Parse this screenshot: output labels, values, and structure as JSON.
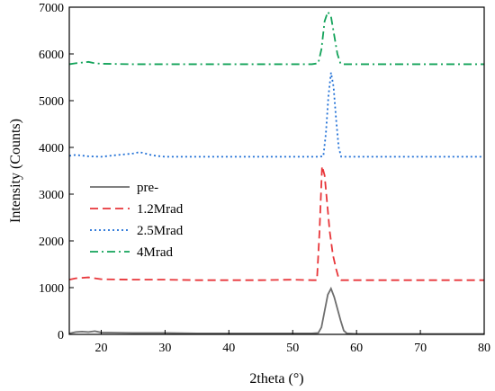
{
  "chart_data": {
    "type": "line",
    "xlabel": "2theta (°)",
    "ylabel": "Intensity (Counts)",
    "xlim": [
      15,
      80
    ],
    "ylim": [
      0,
      7000
    ],
    "xticks": [
      20,
      30,
      40,
      50,
      60,
      70,
      80
    ],
    "yticks": [
      0,
      1000,
      2000,
      3000,
      4000,
      5000,
      6000,
      7000
    ],
    "grid": false,
    "legend_position": "middle-left",
    "series": [
      {
        "name": "pre-",
        "color": "#6e6e6e",
        "dash": "solid",
        "x": [
          15,
          16,
          17,
          18,
          19,
          20,
          25,
          30,
          35,
          40,
          45,
          50,
          53,
          54,
          54.5,
          55,
          55.5,
          56,
          56.5,
          57,
          57.5,
          58,
          58.5,
          60,
          65,
          70,
          75,
          80
        ],
        "y": [
          20,
          50,
          60,
          50,
          70,
          40,
          30,
          30,
          20,
          20,
          20,
          20,
          20,
          30,
          150,
          500,
          850,
          980,
          800,
          550,
          300,
          80,
          20,
          10,
          10,
          10,
          10,
          10
        ]
      },
      {
        "name": "1.2Mrad",
        "color": "#e8363a",
        "dash": "dashed",
        "x": [
          15,
          16,
          18,
          20,
          25,
          30,
          35,
          40,
          45,
          50,
          53,
          53.8,
          54.2,
          54.6,
          55,
          55.4,
          55.8,
          56.3,
          56.8,
          57.2,
          57.6,
          58,
          60,
          65,
          70,
          75,
          80
        ],
        "y": [
          1170,
          1200,
          1220,
          1180,
          1170,
          1170,
          1160,
          1160,
          1160,
          1170,
          1160,
          1160,
          2200,
          3600,
          3400,
          2800,
          2200,
          1700,
          1400,
          1200,
          1160,
          1160,
          1160,
          1160,
          1160,
          1160,
          1160
        ]
      },
      {
        "name": "2.5Mrad",
        "color": "#1f6fd6",
        "dash": "dotted",
        "x": [
          15,
          16,
          18,
          20,
          22,
          25,
          26,
          28,
          30,
          35,
          40,
          45,
          50,
          54,
          54.8,
          55.2,
          55.6,
          56,
          56.4,
          56.8,
          57.2,
          57.6,
          58,
          60,
          65,
          70,
          75,
          80
        ],
        "y": [
          3820,
          3840,
          3810,
          3800,
          3830,
          3870,
          3900,
          3830,
          3800,
          3800,
          3800,
          3800,
          3800,
          3800,
          3810,
          4300,
          5100,
          5600,
          5300,
          4600,
          4000,
          3800,
          3800,
          3800,
          3800,
          3800,
          3800,
          3800
        ]
      },
      {
        "name": "4Mrad",
        "color": "#13a35a",
        "dash": "dashdot",
        "x": [
          15,
          16,
          18,
          19,
          20,
          25,
          30,
          35,
          40,
          45,
          50,
          53,
          54,
          54.5,
          55,
          55.5,
          56,
          56.5,
          57,
          57.5,
          58,
          60,
          65,
          70,
          75,
          80
        ],
        "y": [
          5780,
          5800,
          5830,
          5800,
          5790,
          5780,
          5780,
          5780,
          5780,
          5780,
          5780,
          5780,
          5800,
          6100,
          6700,
          6900,
          6800,
          6400,
          6000,
          5790,
          5780,
          5780,
          5780,
          5780,
          5780,
          5780
        ]
      }
    ]
  }
}
